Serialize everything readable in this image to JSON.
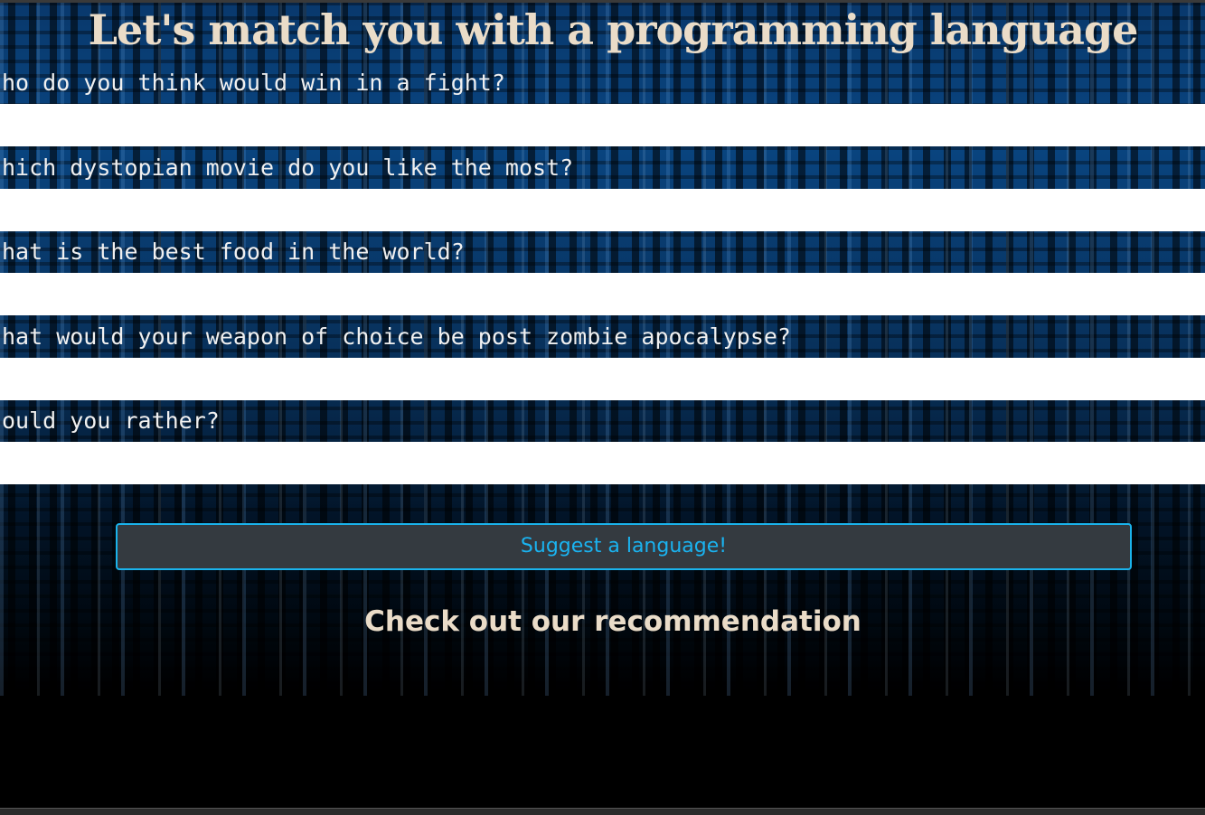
{
  "header": {
    "title": "Let's match you with a programming language"
  },
  "questions": [
    {
      "label": "ho do you think would win in a fight?"
    },
    {
      "label": "hich dystopian movie do you like the most?"
    },
    {
      "label": "hat is the best food in the world?"
    },
    {
      "label": "hat would your weapon of choice be post zombie apocalypse?"
    },
    {
      "label": "ould you rather?"
    }
  ],
  "button": {
    "label": "Suggest a language!"
  },
  "result": {
    "heading": "Check out our recommendation"
  }
}
